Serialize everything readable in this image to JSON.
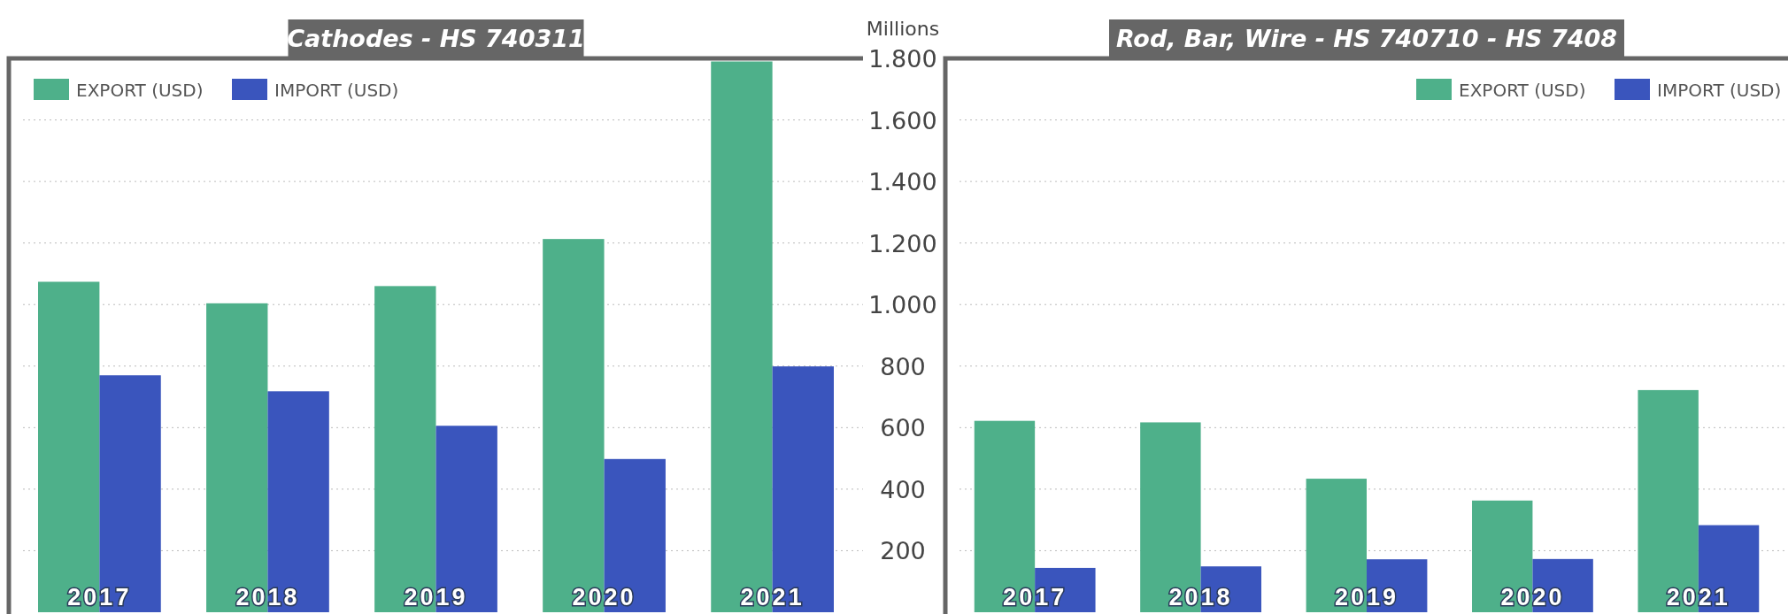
{
  "chart_data": [
    {
      "type": "bar",
      "title": "Cathodes - HS 740311",
      "categories": [
        "2017",
        "2018",
        "2019",
        "2020",
        "2021"
      ],
      "series": [
        {
          "name": "EXPORT (USD)",
          "color": "#4eb08a",
          "values": [
            1074,
            1004,
            1060,
            1213,
            1790
          ]
        },
        {
          "name": "IMPORT (USD)",
          "color": "#3a55bd",
          "values": [
            770,
            718,
            606,
            498,
            799
          ]
        }
      ],
      "ylim": [
        0,
        1800
      ],
      "yticks": [
        200,
        400,
        600,
        800,
        1000,
        1200,
        1400,
        1600,
        1800
      ],
      "grid": "y",
      "legend": "top left",
      "tick_labels": "x"
    },
    {
      "type": "bar",
      "title": "Rod, Bar, Wire - HS 740710 - HS 7408",
      "ylabel": "Millions",
      "categories": [
        "2017",
        "2018",
        "2019",
        "2020",
        "2021"
      ],
      "series": [
        {
          "name": "EXPORT (USD)",
          "color": "#4eb08a",
          "values": [
            622,
            617,
            434,
            363,
            722
          ]
        },
        {
          "name": "IMPORT (USD)",
          "color": "#3a55bd",
          "values": [
            144,
            149,
            172,
            173,
            283
          ]
        }
      ],
      "ylim": [
        0,
        1800
      ],
      "yticks": [
        {
          "value": 200,
          "label": "200"
        },
        {
          "value": 400,
          "label": "400"
        },
        {
          "value": 600,
          "label": "600"
        },
        {
          "value": 800,
          "label": "800"
        },
        {
          "value": 1000,
          "label": "1.000"
        },
        {
          "value": 1200,
          "label": "1.200"
        },
        {
          "value": 1400,
          "label": "1.400"
        },
        {
          "value": 1600,
          "label": "1.600"
        },
        {
          "value": 1800,
          "label": "1.800"
        }
      ],
      "grid": "y",
      "legend": "top right"
    }
  ]
}
